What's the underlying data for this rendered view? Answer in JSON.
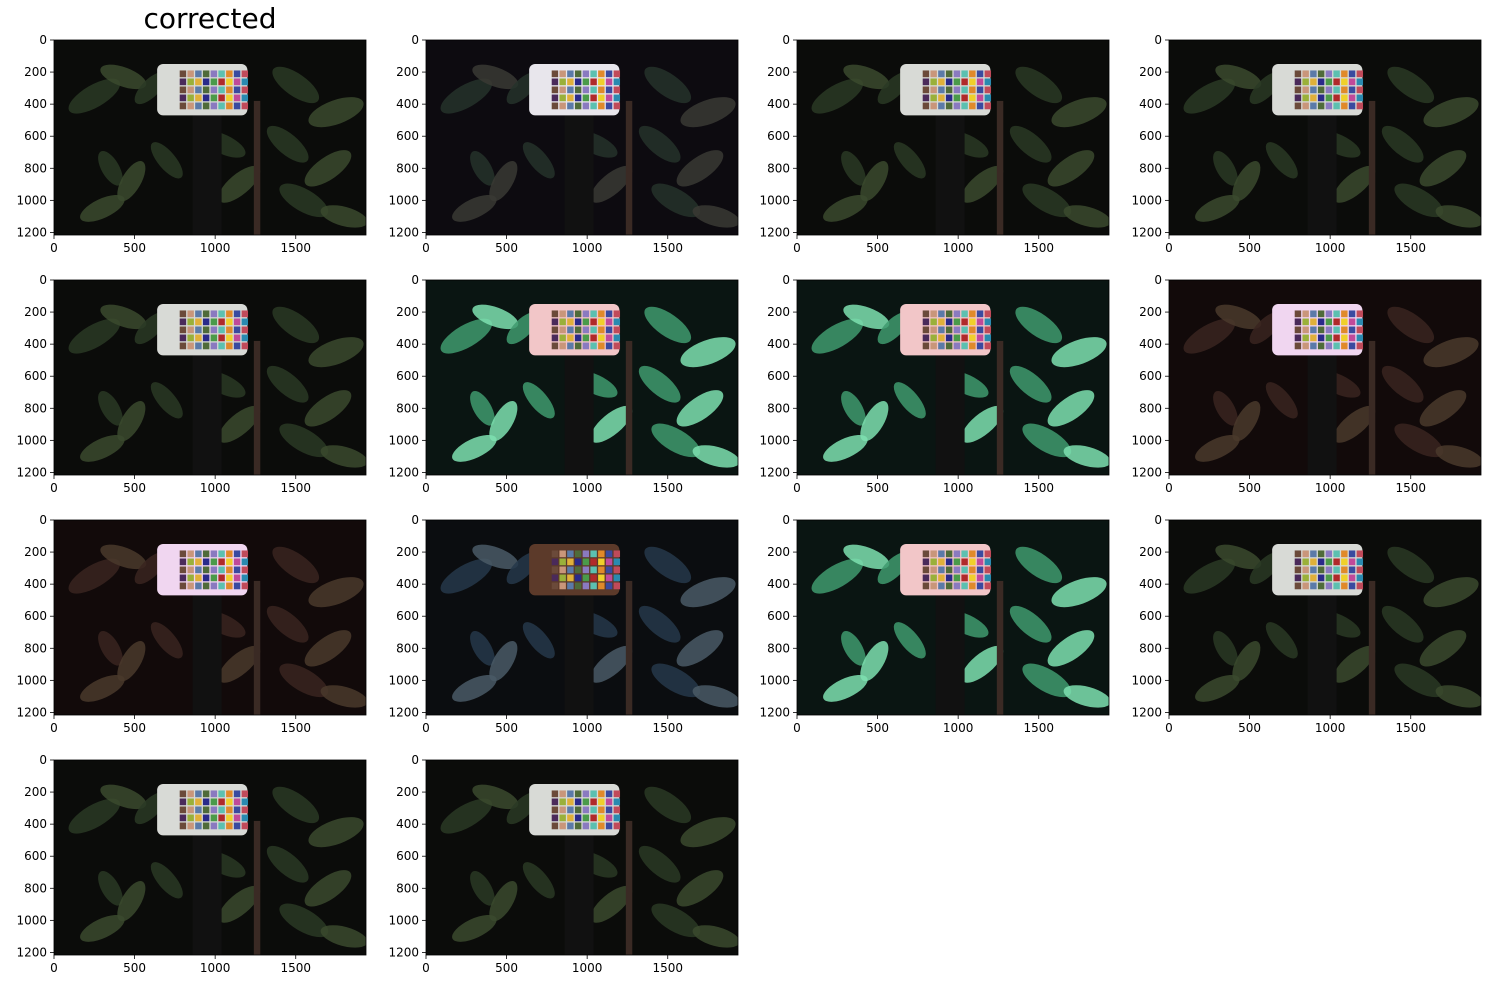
{
  "figure": {
    "title": "corrected",
    "panel_count": 14,
    "columns": 4
  },
  "chart_data": {
    "type": "image-grid",
    "title": "corrected",
    "image_extent": {
      "x": [
        0,
        1936
      ],
      "y": [
        1216,
        0
      ]
    },
    "xticks": [
      0,
      500,
      1000,
      1500
    ],
    "yticks": [
      0,
      200,
      400,
      600,
      800,
      1000,
      1200
    ],
    "panels": [
      {
        "index": 1,
        "title": "corrected",
        "tone": "dark"
      },
      {
        "index": 2,
        "tone": "dark-purple"
      },
      {
        "index": 3,
        "tone": "dark"
      },
      {
        "index": 4,
        "tone": "dark"
      },
      {
        "index": 5,
        "tone": "dark"
      },
      {
        "index": 6,
        "tone": "bright-green"
      },
      {
        "index": 7,
        "tone": "bright-green"
      },
      {
        "index": 8,
        "tone": "dark-red"
      },
      {
        "index": 9,
        "tone": "dark-red"
      },
      {
        "index": 10,
        "tone": "dark-blue"
      },
      {
        "index": 11,
        "tone": "bright-green"
      },
      {
        "index": 12,
        "tone": "dark"
      },
      {
        "index": 13,
        "tone": "dark"
      },
      {
        "index": 14,
        "tone": "dark"
      }
    ]
  },
  "colors": {
    "dark": {
      "bg": "#0b0c0a",
      "leaf": "#2a3a24",
      "leaf2": "#3b4a2e",
      "card": "#d8dad6"
    },
    "dark-purple": {
      "bg": "#0d0b10",
      "leaf": "#26332a",
      "leaf2": "#3a3a34",
      "card": "#e8e6ec"
    },
    "dark-red": {
      "bg": "#120a0a",
      "leaf": "#3a2420",
      "leaf2": "#4a3a2c",
      "card": "#f0d6f0"
    },
    "bright-green": {
      "bg": "#0a1512",
      "leaf": "#3f9a6e",
      "leaf2": "#7ee0b0",
      "card": "#f2c6c8"
    },
    "dark-blue": {
      "bg": "#0b0d10",
      "leaf": "#26384a",
      "leaf2": "#4a5a66",
      "card": "#5c3a2a"
    },
    "swatches": [
      "#6b4a3a",
      "#c9967a",
      "#5b7aa8",
      "#4f6b3a",
      "#8a7ac0",
      "#5cc0b0",
      "#e08a2a",
      "#3a4aa0",
      "#c04a5a",
      "#4a2a5a",
      "#9ab03a",
      "#e0b03a",
      "#2a2a8a",
      "#4a9a4a",
      "#b02a2a",
      "#f0d02a",
      "#c04a9a",
      "#2a8ab0"
    ]
  }
}
